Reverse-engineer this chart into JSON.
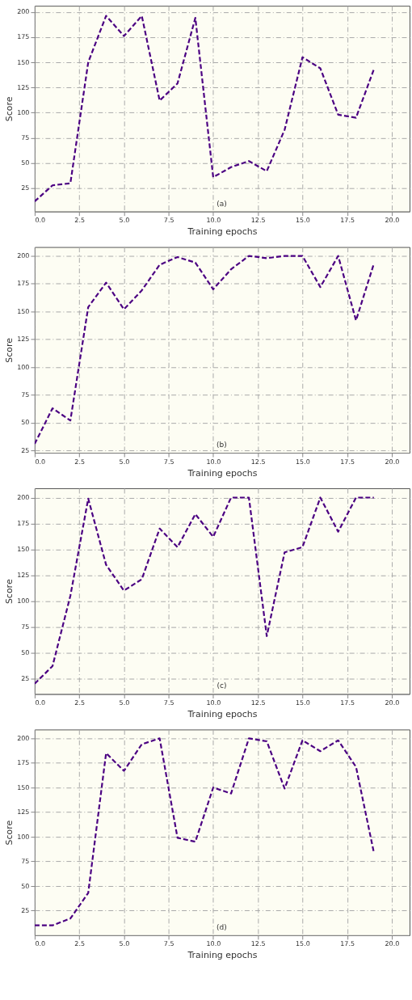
{
  "chart_data": [
    {
      "type": "line",
      "xlabel": "Training epochs",
      "ylabel": "Score",
      "annotations": [
        "(a)"
      ],
      "grid": true,
      "line_style": "dashed",
      "marker": "none",
      "color": "#4b0082",
      "xlim": [
        0,
        21
      ],
      "ylim": [
        2,
        206
      ],
      "xticks": [
        {
          "value": 0,
          "label": "0.0"
        },
        {
          "value": 2.5,
          "label": "2.5"
        },
        {
          "value": 5,
          "label": "5.0"
        },
        {
          "value": 7.5,
          "label": "7.5"
        },
        {
          "value": 10,
          "label": "10.0"
        },
        {
          "value": 12.5,
          "label": "12.5"
        },
        {
          "value": 15,
          "label": "15.0"
        },
        {
          "value": 17.5,
          "label": "17.5"
        },
        {
          "value": 20,
          "label": "20.0"
        }
      ],
      "yticks": [
        25,
        50,
        75,
        100,
        125,
        150,
        175,
        200
      ],
      "x": [
        0,
        1,
        2,
        3,
        4,
        5,
        6,
        7,
        8,
        9,
        10,
        11,
        12,
        13,
        14,
        15,
        16,
        17,
        18,
        19
      ],
      "values": [
        12,
        28,
        30,
        150,
        196,
        176,
        196,
        112,
        129,
        194,
        36,
        46,
        52,
        42,
        83,
        155,
        144,
        98,
        95,
        143
      ]
    },
    {
      "type": "line",
      "xlabel": "Training epochs",
      "ylabel": "Score",
      "annotations": [
        "(b)"
      ],
      "grid": true,
      "line_style": "dashed",
      "marker": "none",
      "color": "#4b0082",
      "xlim": [
        0,
        21
      ],
      "ylim": [
        23,
        208
      ],
      "xticks": [
        {
          "value": 0,
          "label": "0.0"
        },
        {
          "value": 2.5,
          "label": "2.5"
        },
        {
          "value": 5,
          "label": "5.0"
        },
        {
          "value": 7.5,
          "label": "7.5"
        },
        {
          "value": 10,
          "label": "10.0"
        },
        {
          "value": 12.5,
          "label": "12.5"
        },
        {
          "value": 15,
          "label": "15.0"
        },
        {
          "value": 17.5,
          "label": "17.5"
        },
        {
          "value": 20,
          "label": "20.0"
        }
      ],
      "yticks": [
        25,
        50,
        75,
        100,
        125,
        150,
        175,
        200
      ],
      "x": [
        0,
        1,
        2,
        3,
        4,
        5,
        6,
        7,
        8,
        9,
        10,
        11,
        12,
        13,
        14,
        15,
        16,
        17,
        18,
        19
      ],
      "values": [
        31,
        63,
        52,
        154,
        176,
        152,
        169,
        192,
        199,
        194,
        170,
        188,
        200,
        198,
        200,
        200,
        172,
        200,
        142,
        193
      ]
    },
    {
      "type": "line",
      "xlabel": "Training epochs",
      "ylabel": "Score",
      "annotations": [
        "(c)"
      ],
      "grid": true,
      "line_style": "dashed",
      "marker": "none",
      "color": "#4b0082",
      "xlim": [
        0,
        21
      ],
      "ylim": [
        10,
        209
      ],
      "xticks": [
        {
          "value": 0,
          "label": "0.0"
        },
        {
          "value": 2.5,
          "label": "2.5"
        },
        {
          "value": 5,
          "label": "5.0"
        },
        {
          "value": 7.5,
          "label": "7.5"
        },
        {
          "value": 10,
          "label": "10.0"
        },
        {
          "value": 12.5,
          "label": "12.5"
        },
        {
          "value": 15,
          "label": "15.0"
        },
        {
          "value": 17.5,
          "label": "17.5"
        },
        {
          "value": 20,
          "label": "20.0"
        }
      ],
      "yticks": [
        25,
        50,
        75,
        100,
        125,
        150,
        175,
        200
      ],
      "x": [
        0,
        1,
        2,
        3,
        4,
        5,
        6,
        7,
        8,
        9,
        10,
        11,
        12,
        13,
        14,
        15,
        16,
        17,
        18,
        19
      ],
      "values": [
        20,
        37,
        105,
        199,
        135,
        110,
        121,
        170,
        152,
        184,
        162,
        200,
        200,
        66,
        147,
        152,
        200,
        167,
        200,
        200
      ]
    },
    {
      "type": "line",
      "xlabel": "Training epochs",
      "ylabel": "Score",
      "annotations": [
        "(d)"
      ],
      "grid": true,
      "line_style": "dashed",
      "marker": "none",
      "color": "#4b0082",
      "xlim": [
        0,
        21
      ],
      "ylim": [
        0,
        209
      ],
      "xticks": [
        {
          "value": 0,
          "label": "0.0"
        },
        {
          "value": 2.5,
          "label": "2.5"
        },
        {
          "value": 5,
          "label": "5.0"
        },
        {
          "value": 7.5,
          "label": "7.5"
        },
        {
          "value": 10,
          "label": "10.0"
        },
        {
          "value": 12.5,
          "label": "12.5"
        },
        {
          "value": 15,
          "label": "15.0"
        },
        {
          "value": 17.5,
          "label": "17.5"
        },
        {
          "value": 20,
          "label": "20.0"
        }
      ],
      "yticks": [
        25,
        50,
        75,
        100,
        125,
        150,
        175,
        200
      ],
      "x": [
        0,
        1,
        2,
        3,
        4,
        5,
        6,
        7,
        8,
        9,
        10,
        11,
        12,
        13,
        14,
        15,
        16,
        17,
        18,
        19
      ],
      "values": [
        10,
        10,
        17,
        43,
        185,
        167,
        194,
        200,
        99,
        95,
        150,
        144,
        200,
        197,
        149,
        198,
        187,
        198,
        171,
        84
      ]
    }
  ]
}
